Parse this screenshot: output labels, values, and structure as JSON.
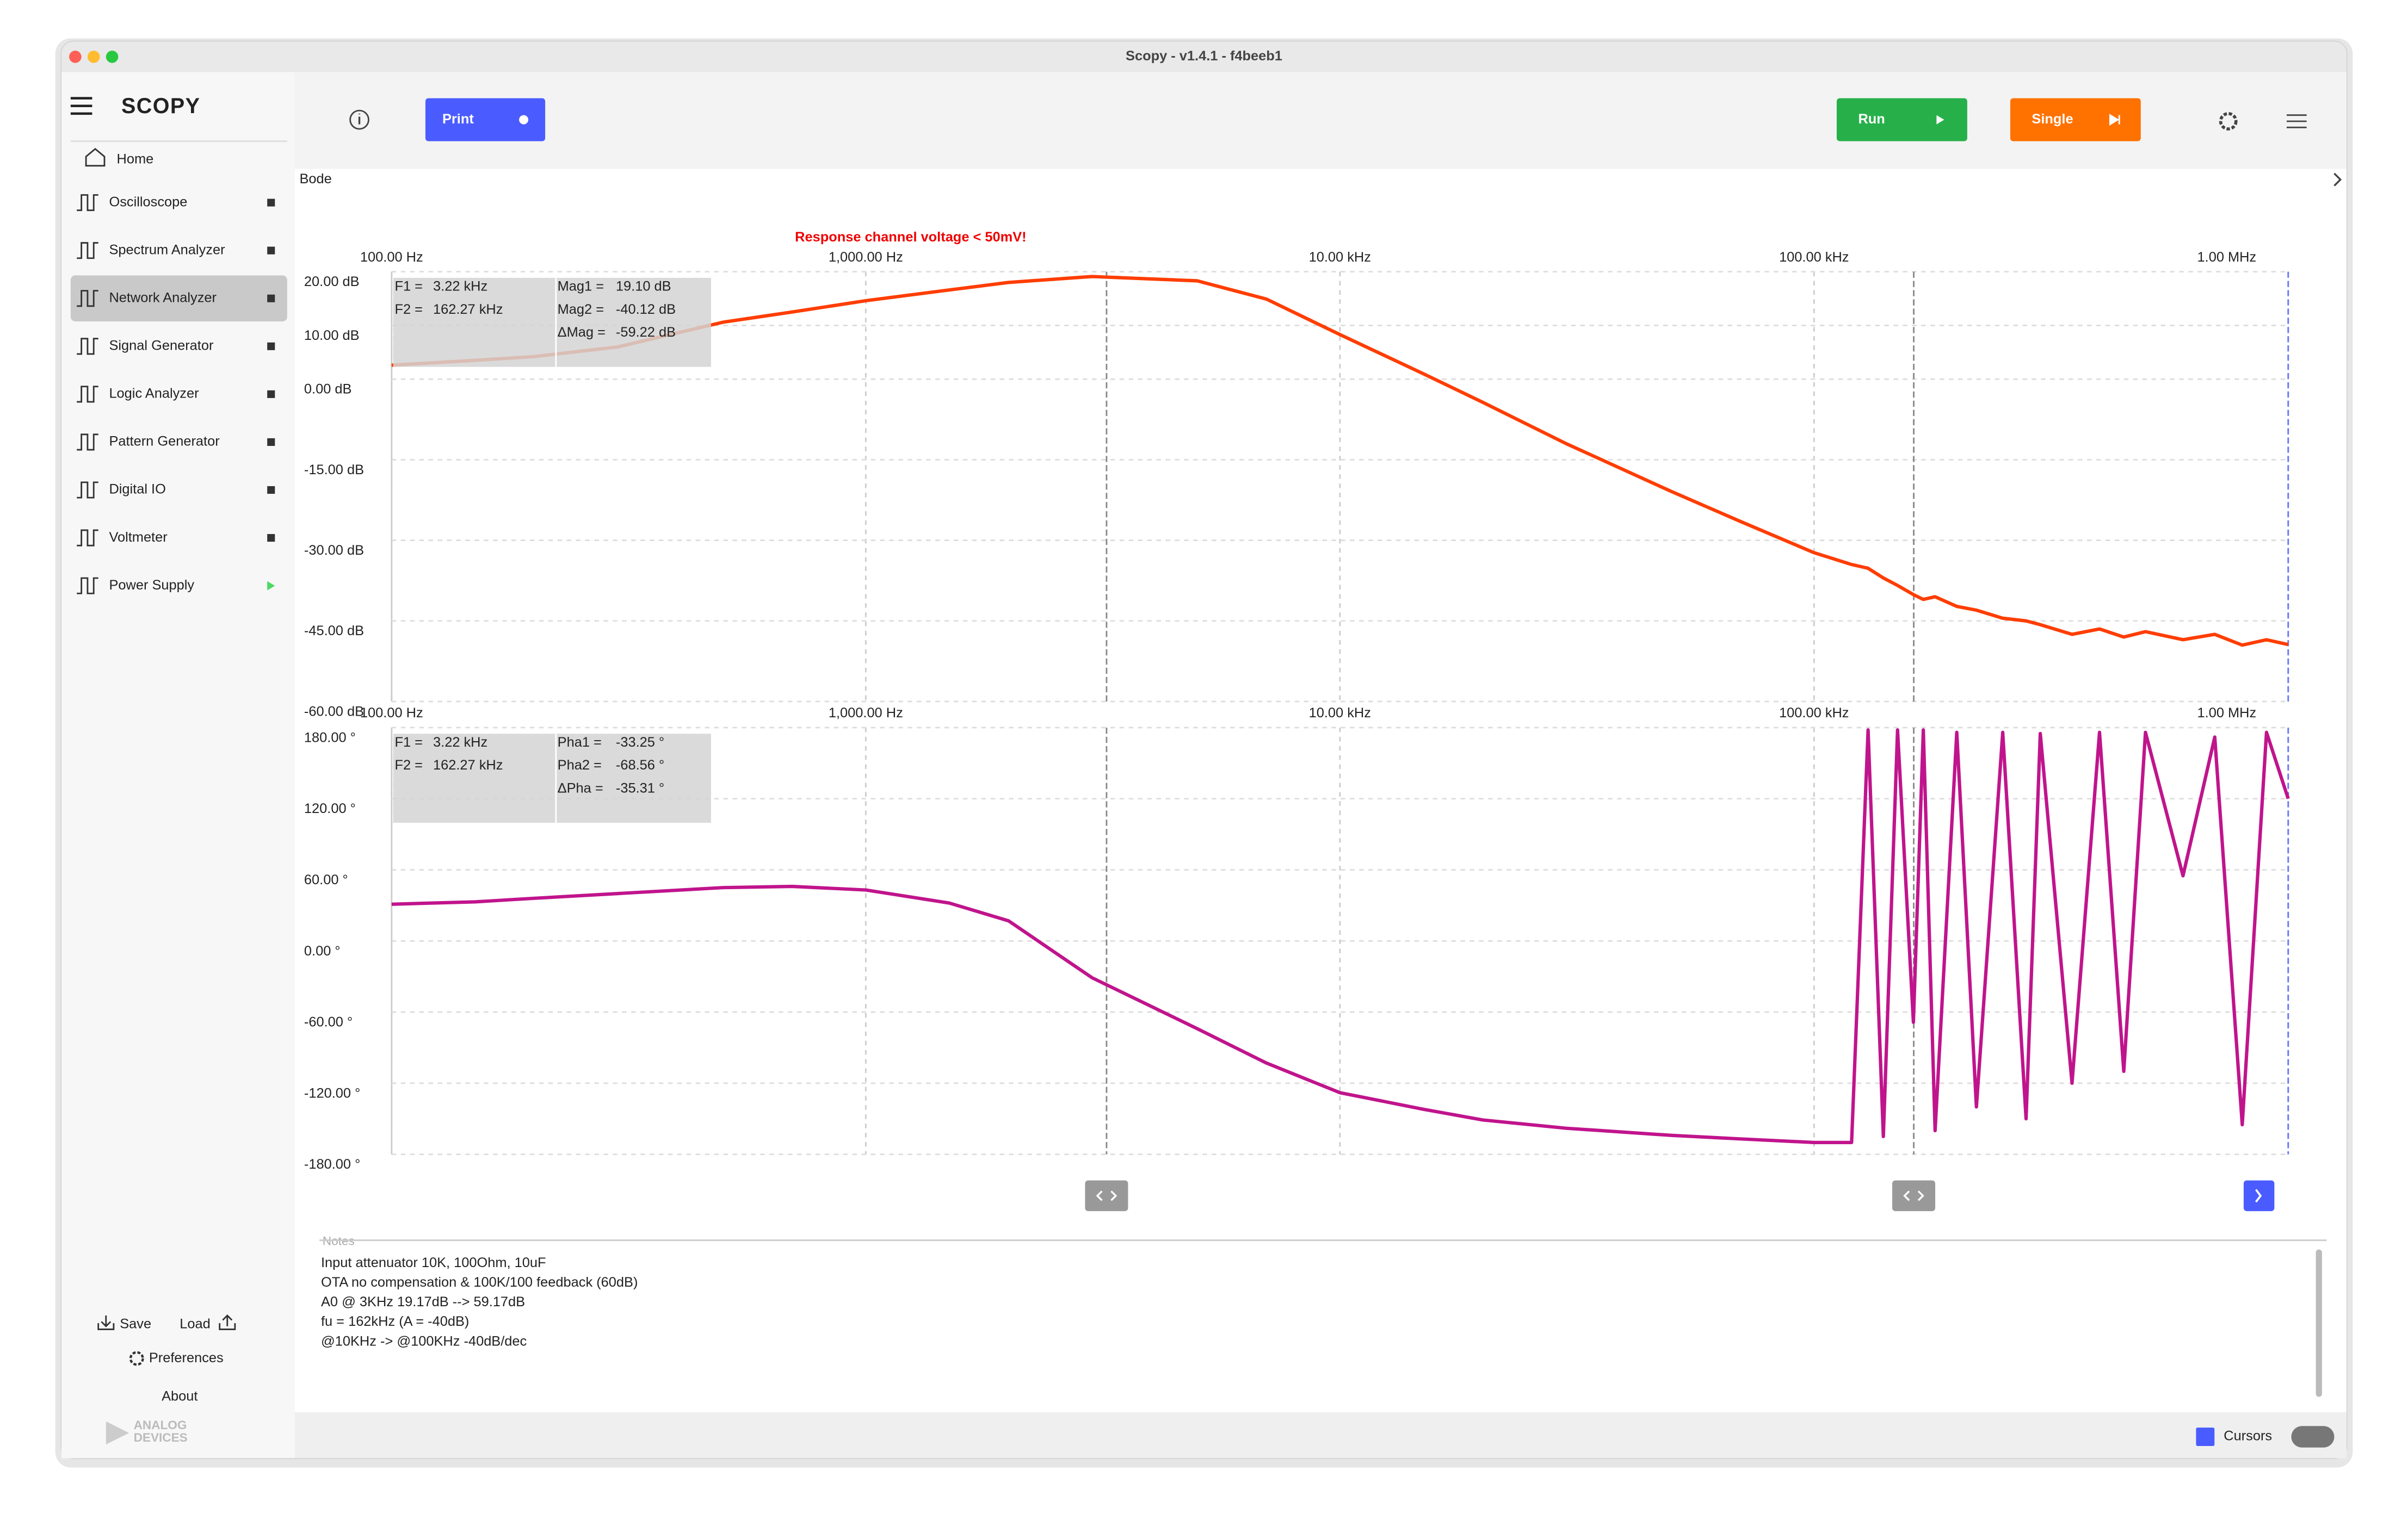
{
  "window_title": "Scopy - v1.4.1 - f4beeb1",
  "sidebar": {
    "logo": "SCOPY",
    "home": "Home",
    "tools": [
      "Oscilloscope",
      "Spectrum Analyzer",
      "Network Analyzer",
      "Signal Generator",
      "Logic Analyzer",
      "Pattern Generator",
      "Digital IO",
      "Voltmeter",
      "Power Supply"
    ],
    "save": "Save",
    "load": "Load",
    "preferences": "Preferences",
    "about": "About",
    "brand": [
      "ANALOG",
      "DEVICES"
    ]
  },
  "toolbar": {
    "print": "Print",
    "run": "Run",
    "single": "Single"
  },
  "plot_title": "Bode",
  "warning": "Response channel voltage < 50mV!",
  "chart_data": [
    {
      "type": "line",
      "xlog": true,
      "grid": true,
      "x": [
        100,
        150,
        200,
        300,
        500,
        700,
        1000,
        1500,
        2000,
        3000,
        5000,
        7000,
        10000,
        15000,
        20000,
        30000,
        50000,
        70000,
        100000,
        120000,
        130000,
        140000,
        150000,
        162000,
        170000,
        180000,
        200000,
        220000,
        250000,
        280000,
        300000,
        350000,
        400000,
        450000,
        500000,
        600000,
        700000,
        800000,
        900000,
        1000000
      ],
      "xlim": [
        100,
        1000000
      ],
      "xticks": [
        {
          "value": 100,
          "label": "100.00 Hz"
        },
        {
          "value": 1000,
          "label": "1,000.00 Hz"
        },
        {
          "value": 10000,
          "label": "10.00 kHz"
        },
        {
          "value": 100000,
          "label": "100.00 kHz"
        },
        {
          "value": 1000000,
          "label": "1.00 MHz"
        }
      ],
      "ylim": [
        -60,
        20
      ],
      "yticks": [
        {
          "value": 20,
          "label": "20.00 dB"
        },
        {
          "value": 10,
          "label": "10.00 dB"
        },
        {
          "value": 0,
          "label": "0.00 dB"
        },
        {
          "value": -15,
          "label": "-15.00 dB"
        },
        {
          "value": -30,
          "label": "-30.00 dB"
        },
        {
          "value": -45,
          "label": "-45.00 dB"
        },
        {
          "value": -60,
          "label": "-60.00 dB"
        }
      ],
      "series": [
        {
          "color": "#ff3d00",
          "values": [
            2.6,
            3.5,
            4.2,
            6,
            10.6,
            12.5,
            14.6,
            16.6,
            18,
            19.1,
            18.3,
            14.9,
            8.3,
            1,
            -4.3,
            -12,
            -20.9,
            -26.5,
            -32.3,
            -34.5,
            -35.2,
            -37,
            -38.4,
            -40.1,
            -41,
            -40.5,
            -42.3,
            -43,
            -44.5,
            -45,
            -45.7,
            -47.5,
            -46.5,
            -48,
            -47,
            -48.5,
            -47.5,
            -49.5,
            -48.5,
            -49.4
          ]
        }
      ],
      "cursors": [
        {
          "value": 3220,
          "label": "3.22 kHz"
        },
        {
          "value": 162270,
          "label": "162.27 kHz"
        }
      ],
      "cursor_names": [
        "F1 =",
        "F2 ="
      ],
      "readout": [
        [
          "Mag1 =",
          "19.10 dB"
        ],
        [
          "Mag2 =",
          "-40.12 dB"
        ],
        [
          "ΔMag =",
          "-59.22 dB"
        ]
      ]
    },
    {
      "type": "line",
      "xlog": true,
      "grid": true,
      "x": [
        100,
        150,
        200,
        300,
        500,
        700,
        1000,
        1500,
        2000,
        3000,
        5000,
        7000,
        10000,
        15000,
        20000,
        30000,
        50000,
        70000,
        100000,
        120000,
        130000,
        140000,
        150000,
        162000,
        170000,
        180000,
        200000,
        220000,
        250000,
        280000,
        300000,
        350000,
        400000,
        450000,
        500000,
        600000,
        700000,
        800000,
        900000,
        1000000
      ],
      "xlim": [
        100,
        1000000
      ],
      "xticks": [
        {
          "value": 100,
          "label": "100.00 Hz"
        },
        {
          "value": 1000,
          "label": "1,000.00 Hz"
        },
        {
          "value": 10000,
          "label": "10.00 kHz"
        },
        {
          "value": 100000,
          "label": "100.00 kHz"
        },
        {
          "value": 1000000,
          "label": "1.00 MHz"
        }
      ],
      "ylim": [
        -180,
        180
      ],
      "yticks": [
        {
          "value": 180,
          "label": "180.00 °"
        },
        {
          "value": 120,
          "label": "120.00 °"
        },
        {
          "value": 60,
          "label": "60.00 °"
        },
        {
          "value": 0,
          "label": "0.00 °"
        },
        {
          "value": -60,
          "label": "-60.00 °"
        },
        {
          "value": -120,
          "label": "-120.00 °"
        },
        {
          "value": -180,
          "label": "-180.00 °"
        }
      ],
      "series": [
        {
          "color": "#c0148c",
          "values": [
            31,
            33,
            36,
            40,
            45,
            46,
            43,
            32,
            17,
            -31,
            -74,
            -103,
            -128,
            -142,
            -151,
            -158,
            -164,
            -167,
            -170,
            -170,
            178,
            -165,
            178,
            -68.6,
            178,
            -160,
            176,
            -140,
            176,
            -150,
            175,
            -120,
            176,
            -110,
            176,
            55,
            172,
            -155,
            176,
            120
          ]
        }
      ],
      "cursors": [
        {
          "value": 3220,
          "label": "3.22 kHz"
        },
        {
          "value": 162270,
          "label": "162.27 kHz"
        }
      ],
      "cursor_names": [
        "F1 =",
        "F2 ="
      ],
      "readout": [
        [
          "Pha1 =",
          "-33.25 °"
        ],
        [
          "Pha2 =",
          "-68.56 °"
        ],
        [
          "ΔPha =",
          "-35.31 °"
        ]
      ]
    }
  ],
  "notes": {
    "label": "Notes",
    "lines": [
      "Input attenuator 10K, 100Ohm, 10uF",
      "OTA no compensation & 100K/100 feedback (60dB)",
      "A0 @ 3KHz 19.17dB --> 59.17dB",
      "fu = 162kHz (A = -40dB)",
      "@10KHz -> @100KHz -40dB/dec"
    ]
  },
  "footer": {
    "cursors": "Cursors"
  }
}
